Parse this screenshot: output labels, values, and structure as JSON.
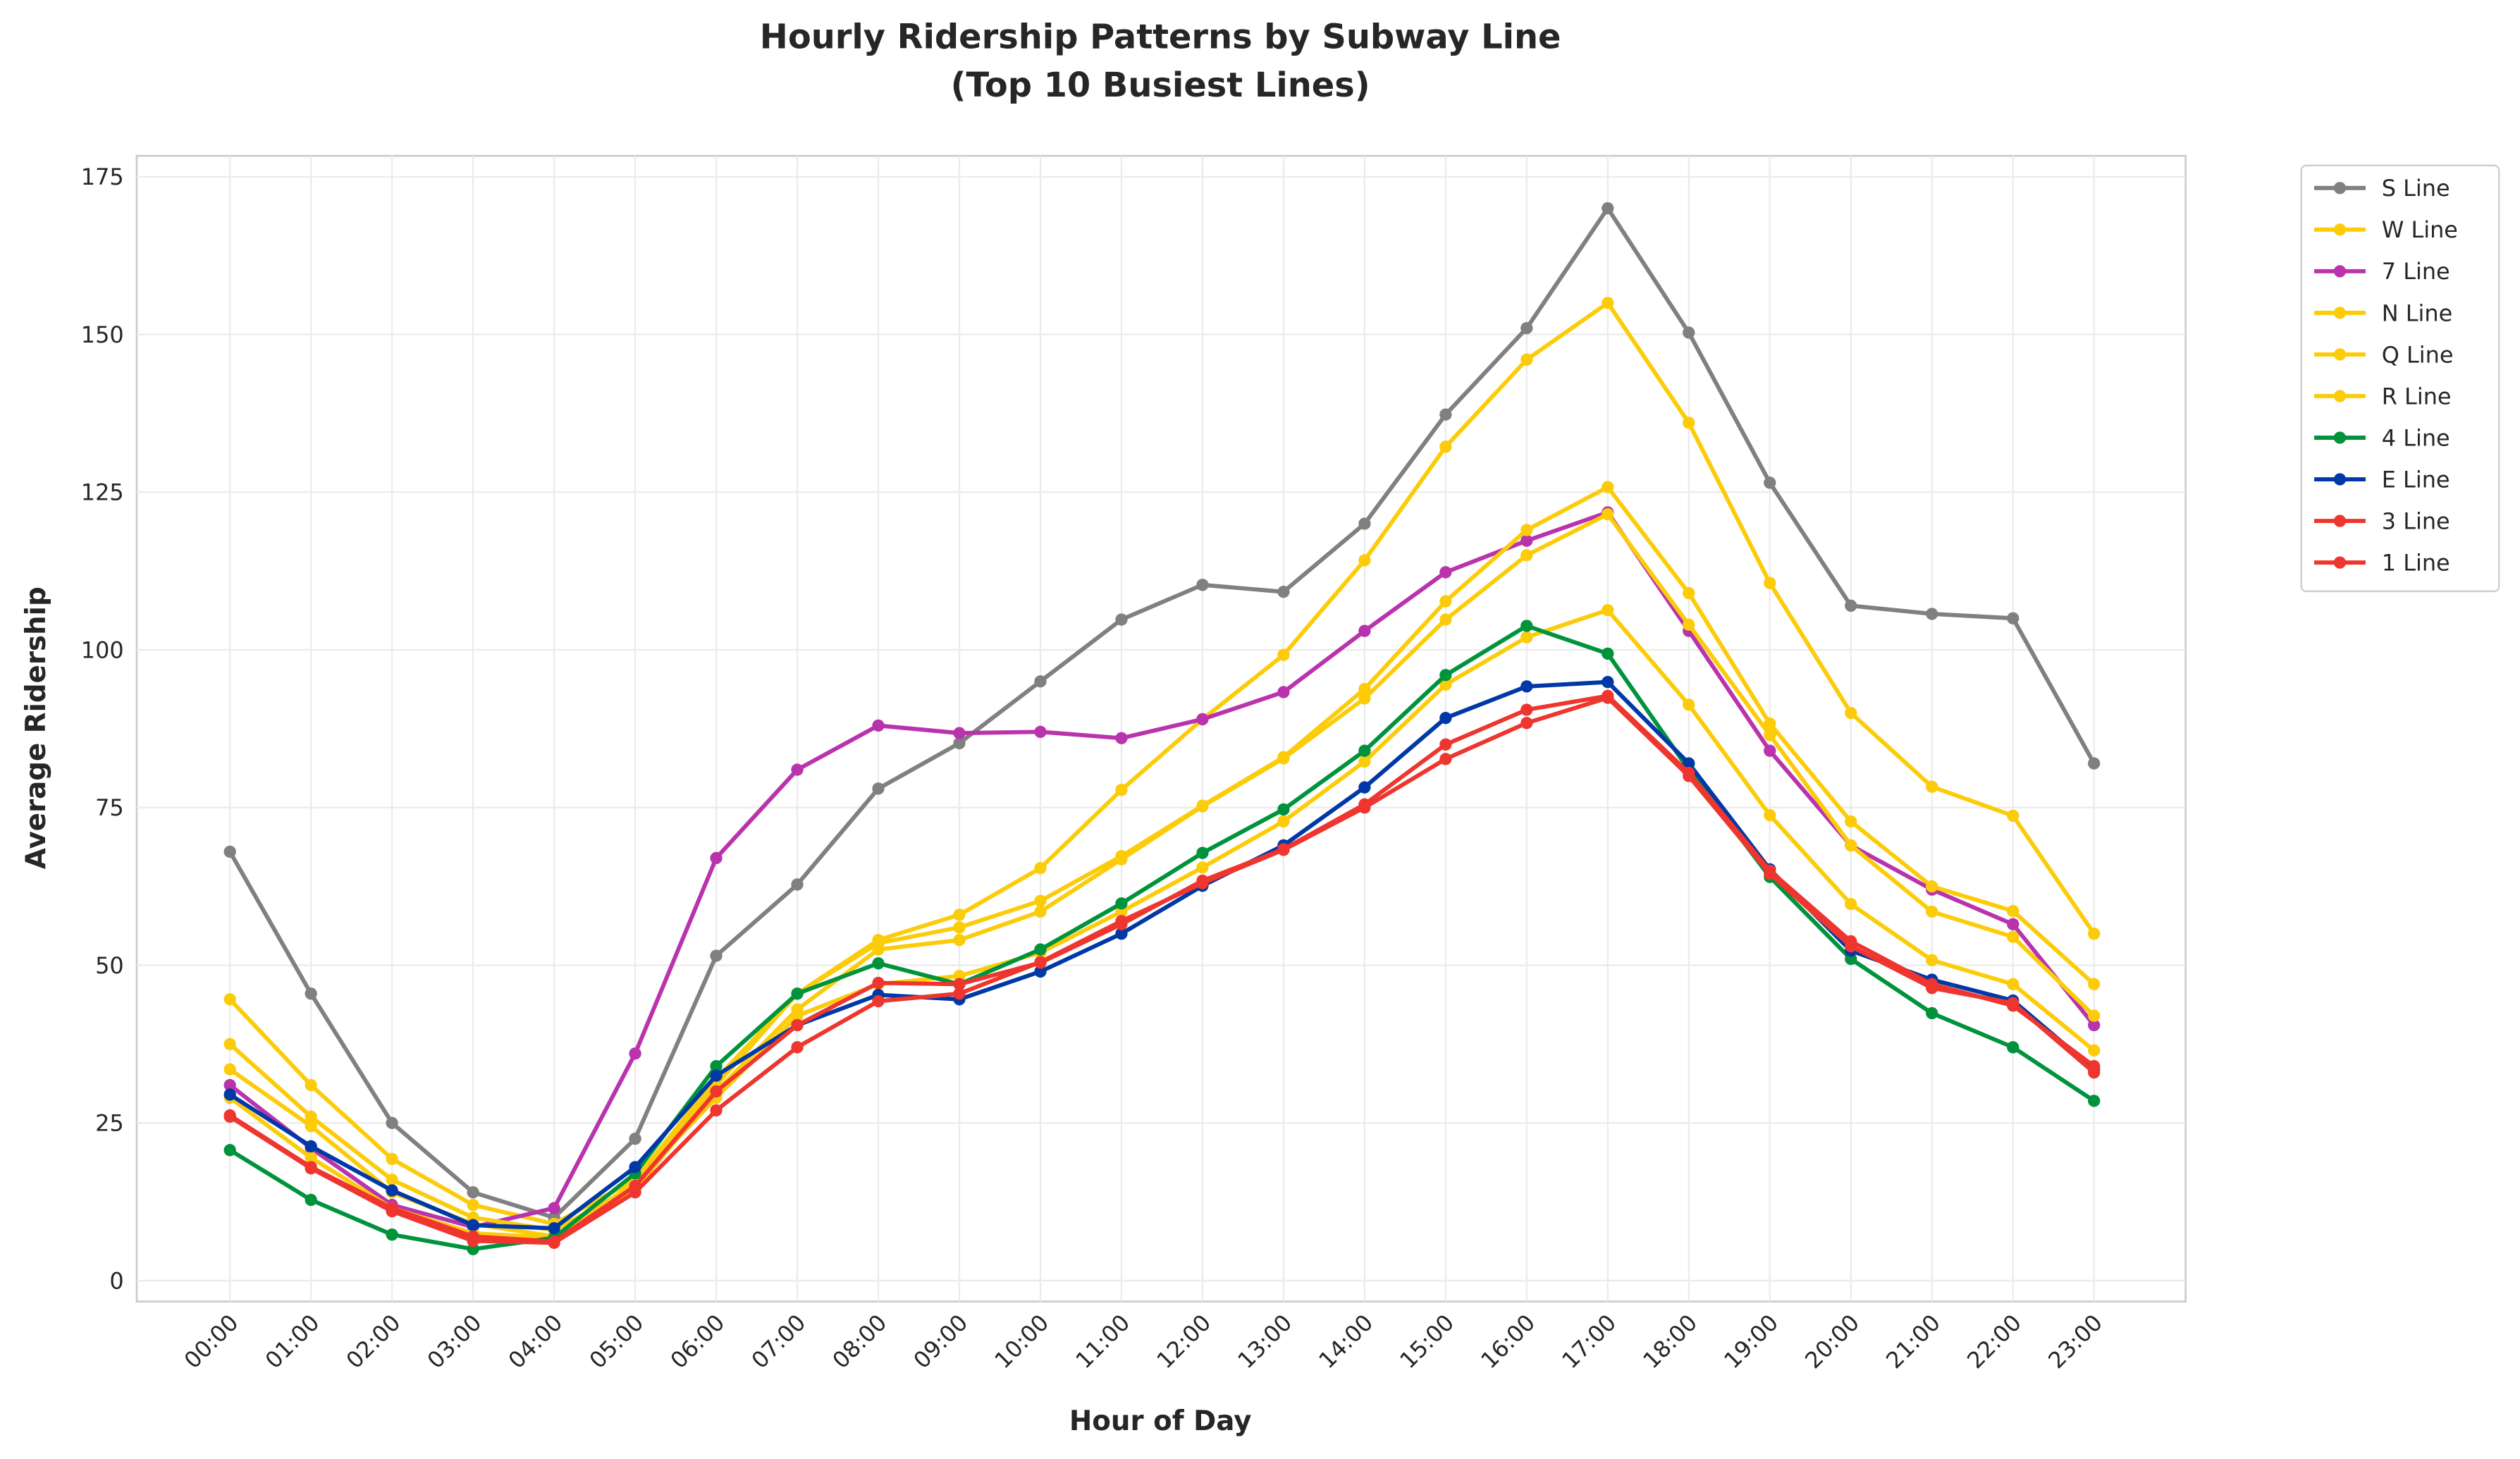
{
  "chart_data": {
    "type": "line",
    "title": "Hourly Ridership Patterns by Subway Line",
    "subtitle": "(Top 10 Busiest Lines)",
    "xlabel": "Hour of Day",
    "ylabel": "Average Ridership",
    "ylim": [
      -3,
      178
    ],
    "yticks": [
      0,
      25,
      50,
      75,
      100,
      125,
      150,
      175
    ],
    "grid": true,
    "legend_placement": "outside-top-right",
    "categories": [
      "00:00",
      "01:00",
      "02:00",
      "03:00",
      "04:00",
      "05:00",
      "06:00",
      "07:00",
      "08:00",
      "09:00",
      "10:00",
      "11:00",
      "12:00",
      "13:00",
      "14:00",
      "15:00",
      "16:00",
      "17:00",
      "18:00",
      "19:00",
      "20:00",
      "21:00",
      "22:00",
      "23:00"
    ],
    "series": [
      {
        "name": "S Line",
        "color": "#808080",
        "values": [
          68,
          45.5,
          25,
          14,
          10,
          22.5,
          51.5,
          62.8,
          78,
          85.2,
          95,
          104.8,
          110.3,
          109.2,
          120,
          137.3,
          151,
          170,
          150.3,
          126.5,
          107,
          105.7,
          105,
          82
        ]
      },
      {
        "name": "W Line",
        "color": "#FCCC0A",
        "values": [
          44.6,
          31,
          19.3,
          12,
          9,
          16,
          32,
          45.5,
          54,
          58,
          65.4,
          77.8,
          89,
          99.2,
          114.2,
          132.2,
          146,
          155,
          136,
          110.6,
          90,
          78.3,
          73.7,
          55
        ]
      },
      {
        "name": "7 Line",
        "color": "#B933AD",
        "values": [
          31,
          21,
          12,
          8.5,
          11.5,
          36,
          67,
          81,
          88,
          86.8,
          87,
          86,
          89,
          93.3,
          103,
          112.3,
          117.3,
          121.8,
          103,
          84,
          69,
          62,
          56.5,
          40.5
        ]
      },
      {
        "name": "N Line",
        "color": "#FCCC0A",
        "values": [
          37.5,
          26,
          16,
          10,
          8,
          15,
          31,
          45.5,
          53.5,
          56,
          60.2,
          67.3,
          75.3,
          83,
          93.8,
          107.7,
          119,
          125.8,
          109,
          88.3,
          72.8,
          62.5,
          58.6,
          47
        ]
      },
      {
        "name": "Q Line",
        "color": "#FCCC0A",
        "values": [
          33.5,
          24.5,
          14,
          9,
          7,
          14.5,
          30,
          43,
          52.5,
          54,
          58.5,
          66.8,
          75.2,
          82.8,
          92.3,
          104.8,
          115,
          121.5,
          104,
          86.5,
          69,
          58.5,
          54.5,
          42
        ]
      },
      {
        "name": "R Line",
        "color": "#FCCC0A",
        "values": [
          29,
          19.5,
          11.5,
          7.5,
          6.8,
          15.5,
          29,
          42,
          47,
          48.3,
          52,
          58.5,
          65.5,
          72.8,
          82.3,
          94.5,
          102,
          106.3,
          91.3,
          73.8,
          59.7,
          50.8,
          47,
          36.5
        ]
      },
      {
        "name": "4 Line",
        "color": "#00933C",
        "values": [
          20.7,
          12.8,
          7.3,
          5,
          6.8,
          17,
          34,
          45.5,
          50.3,
          47,
          52.5,
          59.8,
          67.8,
          74.7,
          84,
          96,
          103.8,
          99.4,
          81,
          64,
          51,
          42.4,
          37,
          28.5
        ]
      },
      {
        "name": "E Line",
        "color": "#0039A6",
        "values": [
          29.5,
          21.3,
          14.3,
          8.8,
          8.3,
          18,
          32.5,
          40.5,
          45.3,
          44.6,
          49,
          55,
          62.6,
          69,
          78.2,
          89.2,
          94.2,
          94.9,
          82,
          65.2,
          52.3,
          47.7,
          44.4,
          33.5
        ]
      },
      {
        "name": "3 Line",
        "color": "#EE352E",
        "values": [
          26.2,
          18,
          11.5,
          7,
          6.2,
          15,
          30,
          40.5,
          47.2,
          47,
          50.4,
          56.5,
          63.4,
          68.4,
          75.5,
          85,
          90.5,
          92.7,
          80.5,
          65,
          53.8,
          47,
          43.6,
          34
        ]
      },
      {
        "name": "1 Line",
        "color": "#EE352E",
        "values": [
          26,
          17.8,
          11,
          6.3,
          6,
          14,
          27,
          37,
          44.3,
          45.5,
          50.5,
          57,
          63,
          68.3,
          75,
          82.7,
          88.4,
          92.4,
          80,
          64.5,
          53,
          46.4,
          44,
          33
        ]
      }
    ]
  }
}
